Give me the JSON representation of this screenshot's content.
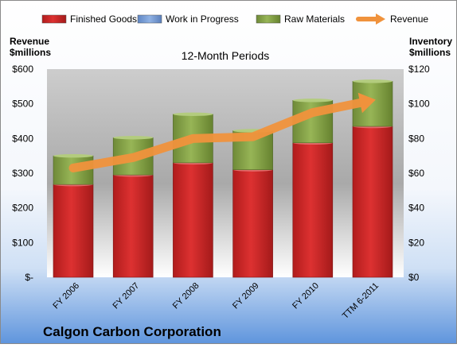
{
  "chart_data": {
    "type": "bar",
    "subtitle": "12-Month Periods",
    "footer_title": "Calgon Carbon Corporation",
    "y_left_label": [
      "Revenue",
      "$millions"
    ],
    "y_right_label": [
      "Inventory",
      "$millions"
    ],
    "categories": [
      "FY 2006",
      "FY 2007",
      "FY 2008",
      "FY 2009",
      "FY 2010",
      "TTM 6-2011"
    ],
    "y_left_ticks": [
      "$600",
      "$500",
      "$400",
      "$300",
      "$200",
      "$100",
      "$-"
    ],
    "y_right_ticks": [
      "$120",
      "$100",
      "$80",
      "$60",
      "$40",
      "$20",
      "$0"
    ],
    "y_left_range": [
      0,
      600
    ],
    "y_right_range": [
      0,
      120
    ],
    "legend": [
      {
        "name": "Finished Goods",
        "kind": "bar",
        "color": "#d42a2a"
      },
      {
        "name": "Work in Progress",
        "kind": "bar",
        "color": "#7aa0d8"
      },
      {
        "name": "Raw Materials",
        "kind": "bar",
        "color": "#90ad4f"
      },
      {
        "name": "Revenue",
        "kind": "arrow",
        "color": "#f0923c"
      }
    ],
    "series": [
      {
        "name": "Finished Goods",
        "axis": "right",
        "values": [
          53.5,
          59,
          66,
          62,
          77.5,
          87
        ]
      },
      {
        "name": "Work in Progress",
        "axis": "right",
        "values": [
          0,
          0,
          0,
          0,
          0,
          0
        ]
      },
      {
        "name": "Raw Materials",
        "axis": "right",
        "values": [
          16.5,
          21.5,
          28,
          22.5,
          24.5,
          26
        ]
      },
      {
        "name": "Revenue",
        "axis": "left",
        "values": [
          315,
          345,
          400,
          405,
          475,
          510
        ]
      }
    ]
  }
}
